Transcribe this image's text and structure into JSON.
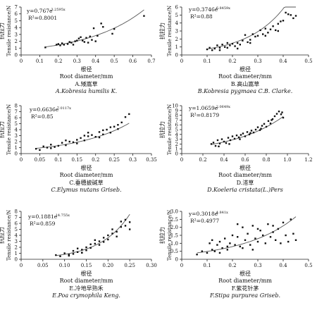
{
  "chart_data": [
    {
      "type": "scatter",
      "panel": "A",
      "caption_cn": "A.矮嵩草",
      "caption_latin": "A.Kobresia humilis K.",
      "xlabel_cn": "根径",
      "xlabel": "Root diameter/mm",
      "ylabel_cn": "抗拉力",
      "ylabel": "Tensile resistance/N",
      "equation_base": "y=0.767e",
      "equation_exp": "3.2595x",
      "r2": "R²=0.8001",
      "fit": {
        "a": 0.767,
        "b": 3.2595
      },
      "xlim": [
        0,
        0.7
      ],
      "ylim": [
        0,
        7
      ],
      "xticks": [
        "0",
        "0.1",
        "0.2",
        "0.3",
        "0.4",
        "0.5",
        "0.6",
        "0.7"
      ],
      "yticks": [
        "0",
        "1",
        "2",
        "3",
        "4",
        "5",
        "6",
        "7"
      ],
      "x": [
        0.13,
        0.19,
        0.2,
        0.21,
        0.22,
        0.23,
        0.25,
        0.26,
        0.27,
        0.28,
        0.29,
        0.3,
        0.31,
        0.32,
        0.33,
        0.34,
        0.35,
        0.36,
        0.37,
        0.38,
        0.39,
        0.4,
        0.41,
        0.43,
        0.44,
        0.49,
        0.5,
        0.66
      ],
      "y": [
        1.1,
        1.5,
        1.6,
        1.4,
        1.7,
        1.5,
        1.6,
        1.9,
        1.8,
        1.5,
        2.0,
        2.1,
        2.4,
        2.6,
        2.1,
        1.9,
        2.5,
        1.8,
        2.7,
        2.2,
        3.9,
        2.0,
        2.8,
        4.6,
        4.1,
        3.1,
        3.8,
        5.7
      ]
    },
    {
      "type": "scatter",
      "panel": "B",
      "caption_cn": "B.高山嵩草",
      "caption_latin": "B.Kobresia pygmaea C.B. Clarke.",
      "xlabel_cn": "根径",
      "xlabel": "Root diameter/mm",
      "ylabel_cn": "抗拉力",
      "ylabel": "Tensile resistance/N",
      "equation_base": "y=0.3746e",
      "equation_exp": "6.8459x",
      "r2": "R²=0.88",
      "fit": {
        "a": 0.3746,
        "b": 6.8459
      },
      "xlim": [
        0,
        0.5
      ],
      "ylim": [
        0,
        6
      ],
      "xticks": [
        "0",
        "0.1",
        "0.2",
        "0.3",
        "0.4",
        "0.5"
      ],
      "yticks": [
        "0",
        "1",
        "2",
        "3",
        "4",
        "5",
        "6"
      ],
      "x": [
        0.1,
        0.11,
        0.12,
        0.13,
        0.14,
        0.15,
        0.16,
        0.17,
        0.18,
        0.19,
        0.2,
        0.21,
        0.22,
        0.23,
        0.24,
        0.25,
        0.26,
        0.27,
        0.28,
        0.29,
        0.3,
        0.31,
        0.32,
        0.33,
        0.34,
        0.35,
        0.36,
        0.37,
        0.38,
        0.39,
        0.4,
        0.41,
        0.42,
        0.43,
        0.44,
        0.45,
        0.15,
        0.18,
        0.22,
        0.27,
        0.33,
        0.38
      ],
      "y": [
        0.7,
        0.9,
        0.6,
        0.8,
        1.2,
        0.9,
        1.3,
        1.0,
        0.9,
        1.2,
        1.4,
        1.1,
        1.5,
        1.3,
        1.8,
        2.5,
        1.6,
        1.9,
        2.6,
        2.3,
        2.4,
        3.1,
        2.6,
        3.3,
        2.8,
        3.2,
        3.6,
        3.1,
        3.9,
        4.2,
        4.3,
        5.3,
        5.1,
        5.0,
        4.6,
        4.9,
        0.6,
        1.5,
        0.8,
        1.5,
        2.4,
        3.0
      ]
    },
    {
      "type": "scatter",
      "panel": "C",
      "caption_cn": "C.垂穗披碱草",
      "caption_latin": "C.Elymus nutans Griseb.",
      "xlabel_cn": "根径",
      "xlabel": "Root diameter/mm",
      "ylabel_cn": "抗拉力",
      "ylabel": "Tensile resistance/N",
      "equation_base": "y=0.6636e",
      "equation_exp": "7.0117x",
      "r2": "R²=0.85",
      "fit": {
        "a": 0.6636,
        "b": 7.0117
      },
      "xlim": [
        0,
        0.35
      ],
      "ylim": [
        0,
        8
      ],
      "xticks": [
        "0",
        "0.05",
        "0.1",
        "0.15",
        "0.2",
        "0.25",
        "0.3",
        "0.35"
      ],
      "yticks": [
        "0",
        "1",
        "2",
        "3",
        "4",
        "5",
        "6",
        "7",
        "8"
      ],
      "x": [
        0.04,
        0.05,
        0.06,
        0.07,
        0.08,
        0.09,
        0.1,
        0.11,
        0.12,
        0.13,
        0.14,
        0.15,
        0.16,
        0.17,
        0.18,
        0.19,
        0.2,
        0.21,
        0.22,
        0.23,
        0.24,
        0.25,
        0.26,
        0.27,
        0.28,
        0.29,
        0.12,
        0.15,
        0.18,
        0.21,
        0.24,
        0.08,
        0.17,
        0.22,
        0.26
      ],
      "y": [
        0.8,
        0.6,
        1.2,
        1.0,
        1.5,
        1.1,
        1.3,
        1.8,
        1.4,
        2.0,
        1.9,
        2.3,
        2.6,
        2.2,
        2.9,
        3.1,
        2.8,
        3.6,
        3.2,
        4.0,
        3.5,
        4.5,
        4.1,
        5.2,
        6.1,
        6.6,
        2.2,
        1.7,
        3.5,
        2.7,
        4.4,
        0.9,
        3.0,
        3.9,
        4.8
      ]
    },
    {
      "type": "scatter",
      "panel": "D",
      "caption_cn": "D.溚草",
      "caption_latin": "D.Koeleria cristata(L.)Pers",
      "xlabel_cn": "根径",
      "xlabel": "Root diameter/mm",
      "ylabel_cn": "抗拉力",
      "ylabel": "Tensile resistance/N",
      "equation_base": "y=1.0659e",
      "equation_exp": "2.0649x",
      "r2": "R²=0.8179",
      "fit": {
        "a": 1.0659,
        "b": 2.0649
      },
      "xlim": [
        0,
        1.2
      ],
      "ylim": [
        0,
        10
      ],
      "xticks": [
        "0",
        "0.2",
        "0.4",
        "0.6",
        "0.8",
        "1.0",
        "1.2"
      ],
      "yticks": [
        "0",
        "1",
        "2",
        "3",
        "4",
        "5",
        "6",
        "7",
        "8",
        "9",
        "10"
      ],
      "x": [
        0.28,
        0.3,
        0.32,
        0.34,
        0.36,
        0.38,
        0.4,
        0.42,
        0.44,
        0.46,
        0.48,
        0.5,
        0.52,
        0.54,
        0.56,
        0.58,
        0.6,
        0.62,
        0.64,
        0.66,
        0.68,
        0.7,
        0.72,
        0.74,
        0.76,
        0.78,
        0.8,
        0.82,
        0.84,
        0.86,
        0.88,
        0.9,
        0.92,
        0.94,
        0.96,
        0.35,
        0.45,
        0.55,
        0.65,
        0.75,
        0.85,
        0.95
      ],
      "y": [
        2.0,
        2.3,
        1.6,
        2.8,
        2.1,
        3.0,
        2.5,
        2.2,
        3.3,
        2.8,
        3.6,
        3.1,
        3.8,
        3.4,
        3.9,
        4.2,
        3.6,
        4.5,
        4.0,
        4.8,
        4.4,
        5.0,
        5.5,
        4.9,
        5.8,
        6.2,
        5.6,
        6.8,
        6.3,
        7.2,
        7.8,
        8.3,
        8.8,
        8.2,
        7.5,
        1.5,
        2.0,
        3.0,
        4.3,
        5.2,
        7.0,
        8.6
      ]
    },
    {
      "type": "scatter",
      "panel": "E",
      "caption_cn": "E.冷地早熟禾",
      "caption_latin": "E.Poa crymophila Keng.",
      "xlabel_cn": "根径",
      "xlabel": "Root diameter/mm",
      "ylabel_cn": "抗拉力",
      "ylabel": "Tensile resistance/N",
      "equation_base": "y=0.1881e",
      "equation_exp": "14.755x",
      "r2": "R²=0.859",
      "fit": {
        "a": 0.1881,
        "b": 14.755
      },
      "xlim": [
        0,
        0.3
      ],
      "ylim": [
        0,
        8
      ],
      "xticks": [
        "0",
        "0.05",
        "0.10",
        "0.15",
        "0.20",
        "0.25",
        "0.30"
      ],
      "yticks": [
        "0",
        "1",
        "2",
        "3",
        "4",
        "5",
        "6",
        "7",
        "8"
      ],
      "x": [
        0.08,
        0.09,
        0.1,
        0.11,
        0.12,
        0.12,
        0.13,
        0.13,
        0.14,
        0.14,
        0.15,
        0.15,
        0.16,
        0.16,
        0.17,
        0.17,
        0.18,
        0.18,
        0.19,
        0.19,
        0.2,
        0.2,
        0.21,
        0.21,
        0.22,
        0.22,
        0.23,
        0.23,
        0.24,
        0.24,
        0.25,
        0.25,
        0.11,
        0.14
      ],
      "y": [
        0.7,
        0.5,
        1.0,
        0.8,
        1.4,
        0.9,
        1.2,
        1.8,
        1.6,
        1.1,
        2.0,
        1.5,
        2.5,
        1.9,
        2.6,
        3.2,
        3.0,
        2.4,
        3.6,
        2.9,
        4.0,
        3.3,
        4.3,
        5.0,
        4.6,
        3.8,
        5.4,
        6.3,
        5.6,
        6.6,
        6.2,
        5.0,
        0.6,
        1.1
      ]
    },
    {
      "type": "scatter",
      "panel": "F",
      "caption_cn": "F.紫花针茅",
      "caption_latin": "F.Stipa purpurea Griseb.",
      "xlabel_cn": "根径",
      "xlabel": "Root diameter/mm",
      "ylabel_cn": "抗拉力",
      "ylabel": "Tensile resistance/N",
      "equation_base": "y=0.3018e",
      "equation_exp": "4.841x",
      "r2": "R²=0.4977",
      "fit": {
        "a": 0.3018,
        "b": 4.841
      },
      "xlim": [
        0,
        0.5
      ],
      "ylim": [
        0,
        3.0
      ],
      "xticks": [
        "0",
        "0.1",
        "0.2",
        "0.3",
        "0.4",
        "0.5"
      ],
      "yticks": [
        "0",
        "0.5",
        "1.0",
        "1.5",
        "2.0",
        "2.5",
        "3.0"
      ],
      "x": [
        0.06,
        0.08,
        0.1,
        0.11,
        0.12,
        0.13,
        0.14,
        0.15,
        0.16,
        0.17,
        0.18,
        0.19,
        0.2,
        0.21,
        0.22,
        0.23,
        0.24,
        0.25,
        0.26,
        0.27,
        0.28,
        0.29,
        0.3,
        0.31,
        0.32,
        0.33,
        0.34,
        0.35,
        0.36,
        0.37,
        0.38,
        0.39,
        0.4,
        0.41,
        0.42,
        0.43,
        0.44,
        0.45,
        0.12,
        0.18,
        0.24,
        0.3,
        0.36,
        0.15,
        0.22,
        0.28
      ],
      "y": [
        0.3,
        0.5,
        0.4,
        1.0,
        0.6,
        0.5,
        0.9,
        1.1,
        0.7,
        1.3,
        0.8,
        1.0,
        1.5,
        0.9,
        1.4,
        0.8,
        2.0,
        1.2,
        1.6,
        0.9,
        2.1,
        1.3,
        1.1,
        1.8,
        1.5,
        1.0,
        2.2,
        1.4,
        1.7,
        1.2,
        1.9,
        1.0,
        2.3,
        1.5,
        1.1,
        2.5,
        1.6,
        1.2,
        1.2,
        0.6,
        0.7,
        1.9,
        2.1,
        0.4,
        2.2,
        0.6
      ]
    }
  ]
}
